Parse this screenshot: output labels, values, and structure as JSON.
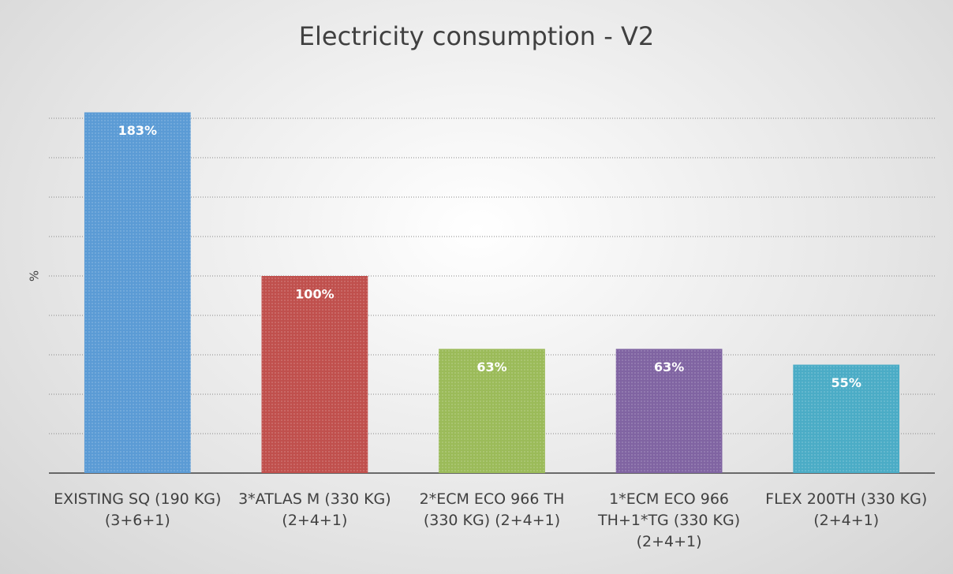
{
  "chart_data": {
    "type": "bar",
    "title": "Electricity consumption - V2",
    "y_label": "%",
    "categories": [
      "EXISTING SQ (190 KG) (3+6+1)",
      "3*ATLAS M (330 KG) (2+4+1)",
      "2*ECM ECO 966 TH (330 KG) (2+4+1)",
      "1*ECM ECO 966 TH+1*TG (330 KG) (2+4+1)",
      "FLEX 200TH (330 KG) (2+4+1)"
    ],
    "values": [
      183,
      100,
      63,
      63,
      55
    ],
    "value_labels": [
      "183%",
      "100%",
      "63%",
      "63%",
      "55%"
    ],
    "colors": [
      "#5b9bd5",
      "#c0504d",
      "#9bbb59",
      "#8064a2",
      "#4bacc6"
    ],
    "ylim": [
      0,
      200
    ],
    "yticks": [
      0,
      20,
      40,
      60,
      80,
      100,
      120,
      140,
      160,
      180
    ],
    "grid": true
  }
}
